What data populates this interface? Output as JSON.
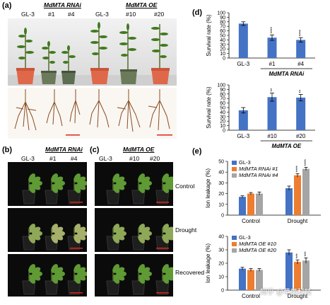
{
  "panels": {
    "a": {
      "label": "(a)",
      "gl3": "GL-3",
      "rnai_title": "MdMTA RNAi",
      "rnai_lines": [
        "#1",
        "#4"
      ],
      "oe_title": "MdMTA OE",
      "oe_gl3": "GL-3",
      "oe_lines": [
        "#10",
        "#20"
      ]
    },
    "b": {
      "label": "(b)",
      "gl3": "GL-3",
      "title": "MdMTA RNAi",
      "lines": [
        "#1",
        "#4"
      ]
    },
    "c": {
      "label": "(c)",
      "gl3": "GL-3",
      "title": "MdMTA OE",
      "lines": [
        "#10",
        "#20"
      ]
    },
    "conditions": [
      "Control",
      "Drought",
      "Recovered"
    ],
    "d": {
      "label": "(d)"
    },
    "e": {
      "label": "(e)"
    }
  },
  "colors": {
    "blue": "#4472c4",
    "orange": "#ed7d31",
    "gray": "#a5a5a5",
    "scale_bar": "#d9261c",
    "star": "#000000"
  },
  "watermark": "知乎 @苹果科技",
  "chart_data": [
    {
      "id": "d-top",
      "type": "bar",
      "categories": [
        "GL-3",
        "#1",
        "#4"
      ],
      "values": [
        76,
        45,
        40
      ],
      "errors": [
        4,
        6,
        5
      ],
      "stars": [
        "",
        "****",
        "****"
      ],
      "ylabel": "Survival rate (%)",
      "ylim": [
        0,
        100
      ],
      "yticks": [
        0,
        10,
        20,
        30,
        40,
        50,
        60,
        70,
        80,
        90,
        100
      ],
      "group_label": "MdMTA RNAi"
    },
    {
      "id": "d-bottom",
      "type": "bar",
      "categories": [
        "GL-3",
        "#10",
        "#20"
      ],
      "values": [
        44,
        73,
        72
      ],
      "errors": [
        6,
        9,
        7
      ],
      "stars": [
        "",
        "**",
        "**"
      ],
      "ylabel": "Survival rate (%)",
      "ylim": [
        0,
        100
      ],
      "yticks": [
        0,
        10,
        20,
        30,
        40,
        50,
        60,
        70,
        80,
        90,
        100
      ],
      "group_label": "MdMTA OE"
    },
    {
      "id": "e-top",
      "type": "bar",
      "categories": [
        "Control",
        "Drought"
      ],
      "series": [
        {
          "name": "GL-3",
          "values": [
            17,
            25
          ],
          "errors": [
            1,
            2
          ],
          "stars": [
            "",
            ""
          ]
        },
        {
          "name": "MdMTA RNAi #1",
          "values": [
            20,
            37
          ],
          "errors": [
            1,
            1.5
          ],
          "stars": [
            "",
            "****"
          ]
        },
        {
          "name": "MdMTA RNAi #4",
          "values": [
            20,
            43
          ],
          "errors": [
            1.5,
            1.5
          ],
          "stars": [
            "",
            "****"
          ]
        }
      ],
      "ylabel": "Ion leakage (%)",
      "ylim": [
        0,
        50
      ],
      "yticks": [
        0,
        10,
        20,
        30,
        40,
        50
      ]
    },
    {
      "id": "e-bottom",
      "type": "bar",
      "categories": [
        "Control",
        "Drought"
      ],
      "series": [
        {
          "name": "GL-3",
          "values": [
            16,
            28
          ],
          "errors": [
            1,
            2
          ],
          "stars": [
            "",
            ""
          ]
        },
        {
          "name": "MdMTA OE #10",
          "values": [
            15,
            21
          ],
          "errors": [
            1,
            1.5
          ],
          "stars": [
            "",
            "***"
          ]
        },
        {
          "name": "MdMTA OE #20",
          "values": [
            15,
            22
          ],
          "errors": [
            1,
            2
          ],
          "stars": [
            "",
            "***"
          ]
        }
      ],
      "ylabel": "Ion leakage (%)",
      "ylim": [
        0,
        40
      ],
      "yticks": [
        0,
        10,
        20,
        30,
        40
      ]
    }
  ]
}
